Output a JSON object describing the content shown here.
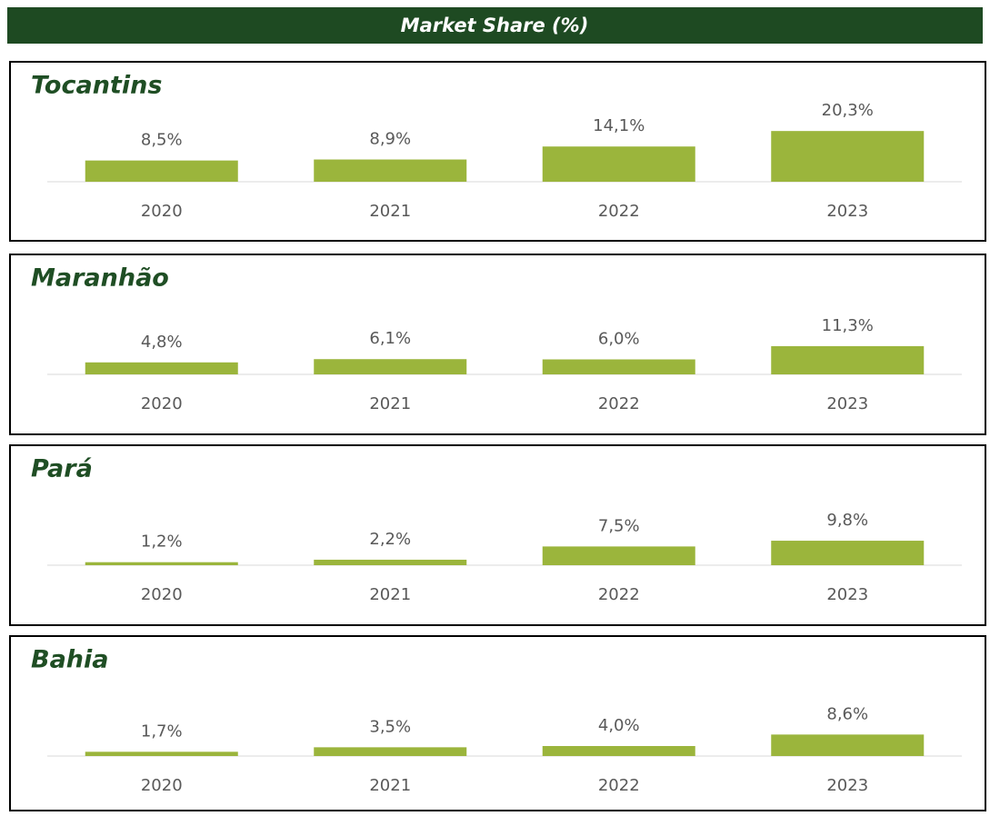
{
  "title": "Market Share (%)",
  "chart_data": [
    {
      "type": "bar",
      "title": "Tocantins",
      "categories": [
        "2020",
        "2021",
        "2022",
        "2023"
      ],
      "values": [
        8.5,
        8.9,
        14.1,
        20.3
      ],
      "value_labels": [
        "8,5%",
        "8,9%",
        "14,1%",
        "20,3%"
      ],
      "color": "#9bb53c"
    },
    {
      "type": "bar",
      "title": "Maranhão",
      "categories": [
        "2020",
        "2021",
        "2022",
        "2023"
      ],
      "values": [
        4.8,
        6.1,
        6.0,
        11.3
      ],
      "value_labels": [
        "4,8%",
        "6,1%",
        "6,0%",
        "11,3%"
      ],
      "color": "#9bb53c"
    },
    {
      "type": "bar",
      "title": "Pará",
      "categories": [
        "2020",
        "2021",
        "2022",
        "2023"
      ],
      "values": [
        1.2,
        2.2,
        7.5,
        9.8
      ],
      "value_labels": [
        "1,2%",
        "2,2%",
        "7,5%",
        "9,8%"
      ],
      "color": "#9bb53c"
    },
    {
      "type": "bar",
      "title": "Bahia",
      "categories": [
        "2020",
        "2021",
        "2022",
        "2023"
      ],
      "values": [
        1.7,
        3.5,
        4.0,
        8.6
      ],
      "value_labels": [
        "1,7%",
        "3,5%",
        "4,0%",
        "8,6%"
      ],
      "color": "#9bb53c"
    }
  ]
}
